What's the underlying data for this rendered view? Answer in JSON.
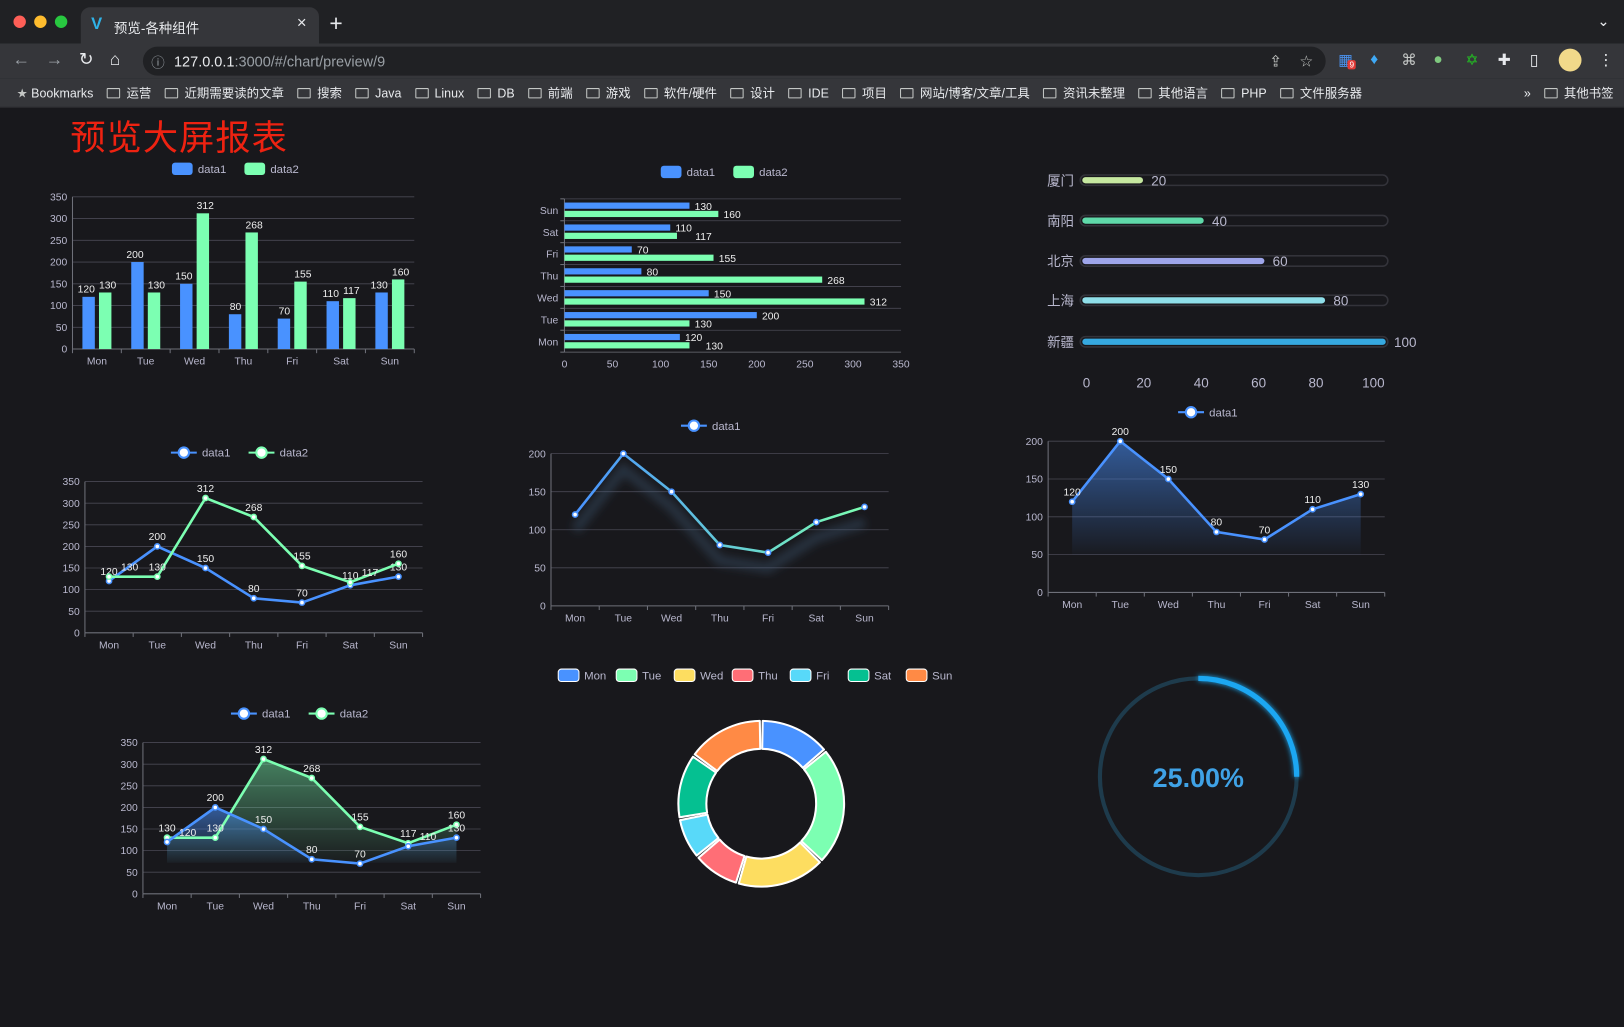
{
  "browser": {
    "tab_title": "预览-各种组件",
    "url_host": "127.0.0.1",
    "url_rest": ":3000/#/chart/preview/9",
    "extension_badge": "9",
    "bookmarks": [
      "Bookmarks",
      "运营",
      "近期需要读的文章",
      "搜索",
      "Java",
      "Linux",
      "DB",
      "前端",
      "游戏",
      "软件/硬件",
      "设计",
      "IDE",
      "项目",
      "网站/博客/文章/工具",
      "资讯未整理",
      "其他语言",
      "PHP",
      "文件服务器"
    ],
    "bookmarks_overflow": "»",
    "other_bookmarks": "其他书签"
  },
  "page": {
    "title": "预览大屏报表",
    "title_color": "#ee2211",
    "background": "#18181c"
  },
  "colors": {
    "data1": "#4992ff",
    "data2": "#7cffb2",
    "text": "#b9b8ce",
    "grid": "#484753"
  },
  "chart_data": [
    {
      "type": "bar",
      "categories": [
        "Mon",
        "Tue",
        "Wed",
        "Thu",
        "Fri",
        "Sat",
        "Sun"
      ],
      "series": [
        {
          "name": "data1",
          "values": [
            120,
            200,
            150,
            80,
            70,
            110,
            130
          ]
        },
        {
          "name": "data2",
          "values": [
            130,
            130,
            312,
            268,
            155,
            117,
            160
          ]
        }
      ],
      "ylim": [
        0,
        350
      ],
      "yticks": [
        0,
        50,
        100,
        150,
        200,
        250,
        300,
        350
      ],
      "data_labels": true,
      "legend": "top"
    },
    {
      "type": "bar",
      "orientation": "horizontal",
      "categories": [
        "Mon",
        "Tue",
        "Wed",
        "Thu",
        "Fri",
        "Sat",
        "Sun"
      ],
      "series": [
        {
          "name": "data1",
          "values": [
            120,
            200,
            150,
            80,
            70,
            110,
            130
          ]
        },
        {
          "name": "data2",
          "values": [
            130,
            130,
            312,
            268,
            155,
            117,
            160
          ]
        }
      ],
      "xlim": [
        0,
        350
      ],
      "xticks": [
        0,
        50,
        100,
        150,
        200,
        250,
        300,
        350
      ],
      "data_labels": true,
      "legend": "top"
    },
    {
      "type": "bar",
      "orientation": "horizontal",
      "style": "progress",
      "categories": [
        "厦门",
        "南阳",
        "北京",
        "上海",
        "新疆"
      ],
      "values": [
        20,
        40,
        60,
        80,
        100
      ],
      "colors": [
        "#c6e8a0",
        "#5fd9a9",
        "#9ea5ea",
        "#8fdfea",
        "#36a9e1"
      ],
      "xlim": [
        0,
        100
      ],
      "xticks": [
        0,
        20,
        40,
        60,
        80,
        100
      ]
    },
    {
      "type": "line",
      "categories": [
        "Mon",
        "Tue",
        "Wed",
        "Thu",
        "Fri",
        "Sat",
        "Sun"
      ],
      "series": [
        {
          "name": "data1",
          "values": [
            120,
            200,
            150,
            80,
            70,
            110,
            130
          ]
        },
        {
          "name": "data2",
          "values": [
            130,
            130,
            312,
            268,
            155,
            117,
            160
          ]
        }
      ],
      "ylim": [
        0,
        350
      ],
      "yticks": [
        0,
        50,
        100,
        150,
        200,
        250,
        300,
        350
      ],
      "data_labels": true,
      "legend": "top"
    },
    {
      "type": "line",
      "categories": [
        "Mon",
        "Tue",
        "Wed",
        "Thu",
        "Fri",
        "Sat",
        "Sun"
      ],
      "series": [
        {
          "name": "data1",
          "values": [
            120,
            200,
            150,
            80,
            70,
            110,
            130
          ]
        }
      ],
      "ylim": [
        0,
        200
      ],
      "yticks": [
        0,
        50,
        100,
        150,
        200
      ],
      "data_labels": false,
      "gradient": [
        "#4992ff",
        "#7cffb2"
      ],
      "legend": "top"
    },
    {
      "type": "area",
      "categories": [
        "Mon",
        "Tue",
        "Wed",
        "Thu",
        "Fri",
        "Sat",
        "Sun"
      ],
      "series": [
        {
          "name": "data1",
          "values": [
            120,
            200,
            150,
            80,
            70,
            110,
            130
          ]
        }
      ],
      "ylim": [
        0,
        200
      ],
      "yticks": [
        0,
        50,
        100,
        150,
        200
      ],
      "data_labels": true,
      "legend": "top"
    },
    {
      "type": "area",
      "categories": [
        "Mon",
        "Tue",
        "Wed",
        "Thu",
        "Fri",
        "Sat",
        "Sun"
      ],
      "series": [
        {
          "name": "data1",
          "values": [
            120,
            200,
            150,
            80,
            70,
            110,
            130
          ]
        },
        {
          "name": "data2",
          "values": [
            130,
            130,
            312,
            268,
            155,
            117,
            160
          ]
        }
      ],
      "ylim": [
        0,
        350
      ],
      "yticks": [
        0,
        50,
        100,
        150,
        200,
        250,
        300,
        350
      ],
      "data_labels": true,
      "legend": "top"
    },
    {
      "type": "pie",
      "style": "donut",
      "categories": [
        "Mon",
        "Tue",
        "Wed",
        "Thu",
        "Fri",
        "Sat",
        "Sun"
      ],
      "values": [
        120,
        200,
        150,
        80,
        70,
        110,
        130
      ],
      "colors": [
        "#4992ff",
        "#7cffb2",
        "#fddd60",
        "#ff6e76",
        "#58d9f9",
        "#05c091",
        "#ff8a45"
      ],
      "legend": "top"
    },
    {
      "type": "gauge",
      "value": 25,
      "label": "25.00%",
      "color": "#1aa7f2",
      "track_color": "#1e3b4c"
    }
  ]
}
